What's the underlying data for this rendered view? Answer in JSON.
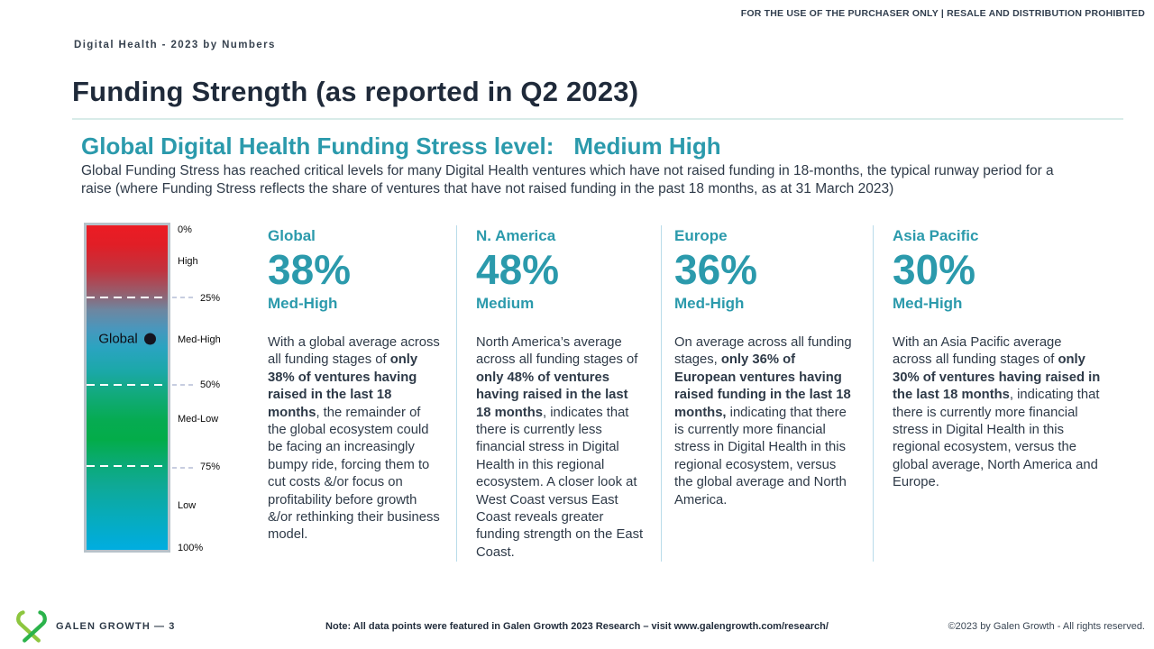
{
  "header": {
    "disclaimer": "FOR THE USE OF THE PURCHASER ONLY | RESALE AND DISTRIBUTION PROHIBITED",
    "eyebrow": "Digital Health - 2023 by Numbers",
    "title": "Funding Strength (as reported in Q2 2023)"
  },
  "section": {
    "stress_label": "Global Digital Health Funding Stress level:",
    "stress_value": "Medium High",
    "description": "Global Funding Stress has reached critical levels for many Digital Health ventures which have not raised funding in 18-months, the typical runway period for a raise (where Funding Stress reflects the share of ventures that have not raised funding in the past 18 months, as at 31 March 2023)"
  },
  "gauge": {
    "marker_label": "Global",
    "scale": [
      {
        "label": "0%"
      },
      {
        "label": "High"
      },
      {
        "label": "25%"
      },
      {
        "label": "Med-High"
      },
      {
        "label": "50%"
      },
      {
        "label": "Med-Low"
      },
      {
        "label": "75%"
      },
      {
        "label": "Low"
      },
      {
        "label": "100%"
      }
    ]
  },
  "chart_data": {
    "type": "gauge",
    "title": "Global Digital Health Funding Stress level",
    "scale_levels": [
      "High",
      "Med-High",
      "Med-Low",
      "Low"
    ],
    "scale_ticks": [
      "0%",
      "25%",
      "50%",
      "75%",
      "100%"
    ],
    "marker": {
      "name": "Global",
      "value": 38
    },
    "series": [
      {
        "name": "Global",
        "value": 38,
        "level": "Med-High"
      },
      {
        "name": "N. America",
        "value": 48,
        "level": "Medium"
      },
      {
        "name": "Europe",
        "value": 36,
        "level": "Med-High"
      },
      {
        "name": "Asia Pacific",
        "value": 30,
        "level": "Med-High"
      }
    ]
  },
  "regions": [
    {
      "name": "Global",
      "value": "38%",
      "level": "Med-High",
      "paragraph": [
        {
          "t": "With a global average across all funding stages of ",
          "b": false
        },
        {
          "t": "only 38% of ventures having raised in the last 18 months",
          "b": true
        },
        {
          "t": ", the remainder of the global ecosystem could be facing an increasingly bumpy ride, forcing them to cut costs &/or focus on profitability before growth &/or rethinking their business model.",
          "b": false
        }
      ]
    },
    {
      "name": "N. America",
      "value": "48%",
      "level": "Medium",
      "paragraph": [
        {
          "t": "North America’s average across all funding stages of ",
          "b": false
        },
        {
          "t": "only 48% of ventures having raised in the last 18 months",
          "b": true
        },
        {
          "t": ", indicates that there is currently less financial stress in Digital Health in this regional ecosystem. A closer look at West Coast versus East Coast reveals greater funding strength on the East Coast.",
          "b": false
        }
      ]
    },
    {
      "name": "Europe",
      "value": "36%",
      "level": "Med-High",
      "paragraph": [
        {
          "t": "On average across all funding stages, ",
          "b": false
        },
        {
          "t": "only 36% of European ventures having raised funding in the last 18 months,",
          "b": true
        },
        {
          "t": " indicating that there is currently more financial stress in Digital Health in this regional ecosystem, versus the global average and North America.",
          "b": false
        }
      ]
    },
    {
      "name": "Asia Pacific",
      "value": "30%",
      "level": "Med-High",
      "paragraph": [
        {
          "t": "With an Asia Pacific average across all funding stages of ",
          "b": false
        },
        {
          "t": "only 30% of ventures having raised in the last 18 months",
          "b": true
        },
        {
          "t": ", indicating that there is currently more financial stress in Digital Health in this regional ecosystem, versus the global average, North America and Europe.",
          "b": false
        }
      ]
    }
  ],
  "footer": {
    "brand": "GALEN GROWTH — 3",
    "note": "Note: All data points were featured in Galen Growth 2023 Research – visit www.galengrowth.com/research/",
    "copyright": "©2023 by Galen Growth - All rights reserved.",
    "logo_green_light": "#8dc63f",
    "logo_green_dark": "#2bb34b"
  },
  "colors": {
    "accent_teal": "#2b9aac",
    "title_navy": "#1f2a3a",
    "gauge_top_red": "#ec1c24",
    "gauge_green": "#03ac49",
    "gauge_bottom_cyan": "#00ade0"
  }
}
